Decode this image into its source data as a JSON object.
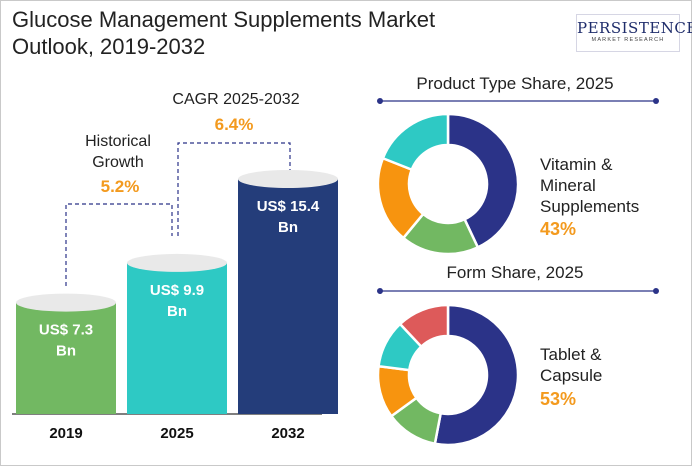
{
  "title_line1": "Glucose Management Supplements Market",
  "title_line2": "Outlook, 2019-2032",
  "logo": {
    "name": "PERSISTENCE",
    "tagline": "MARKET RESEARCH"
  },
  "colors": {
    "bar_2019": "#72b862",
    "bar_2025": "#2ec9c4",
    "bar_2032": "#243d7a",
    "growth_orange": "#f39a1e",
    "donut_navy": "#2b3388",
    "donut_green": "#72b862",
    "donut_orange": "#f7940f",
    "donut_teal": "#2ec9c4",
    "donut_red": "#dd5a5a"
  },
  "chart_data": [
    {
      "type": "bar",
      "categories": [
        "2019",
        "2025",
        "2032"
      ],
      "values": [
        7.3,
        9.9,
        15.4
      ],
      "value_labels": [
        "US$ 7.3 Bn",
        "US$ 9.9 Bn",
        "US$ 15.4 Bn"
      ],
      "annotations": [
        {
          "label_line1": "Historical",
          "label_line2": "Growth",
          "value": "5.2%"
        },
        {
          "label_line1": "CAGR 2025-2032",
          "value": "6.4%"
        }
      ]
    },
    {
      "type": "pie",
      "title": "Product Type Share, 2025",
      "slices": [
        {
          "share": 43,
          "color": "#2b3388"
        },
        {
          "share": 18,
          "color": "#72b862"
        },
        {
          "share": 20,
          "color": "#f7940f"
        },
        {
          "share": 19,
          "color": "#2ec9c4"
        }
      ],
      "callout_line1": "Vitamin &",
      "callout_line2": "Mineral",
      "callout_line3": "Supplements",
      "callout_value": "43%"
    },
    {
      "type": "pie",
      "title": "Form Share, 2025",
      "slices": [
        {
          "share": 53,
          "color": "#2b3388"
        },
        {
          "share": 12,
          "color": "#72b862"
        },
        {
          "share": 12,
          "color": "#f7940f"
        },
        {
          "share": 11,
          "color": "#2ec9c4"
        },
        {
          "share": 12,
          "color": "#dd5a5a"
        }
      ],
      "callout_line1": "Tablet &",
      "callout_line2": "Capsule",
      "callout_value": "53%"
    }
  ]
}
